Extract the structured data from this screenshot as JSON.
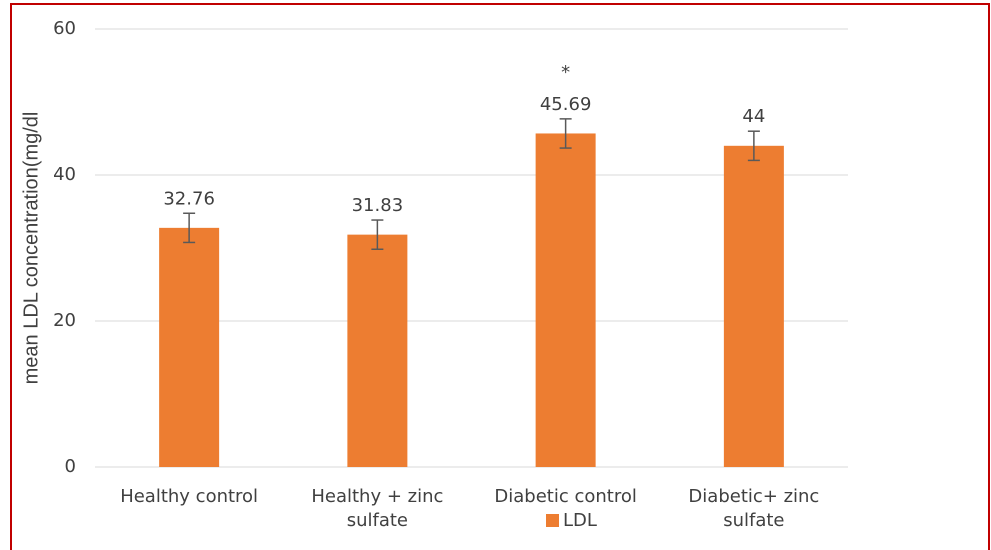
{
  "chart_data": {
    "type": "bar",
    "y_label": "mean LDL concentration(mg/dl",
    "categories": [
      "Healthy control",
      "Healthy + zinc sulfate",
      "Diabetic control",
      "Diabetic+ zinc sulfate"
    ],
    "series": [
      {
        "name": "LDL",
        "color": "#ed7d31",
        "values": [
          32.76,
          31.83,
          45.69,
          44
        ],
        "errors": [
          2,
          2,
          2,
          2
        ]
      }
    ],
    "annotations": [
      {
        "text": "*",
        "category": "Diabetic control"
      }
    ],
    "ylim": [
      0,
      60
    ],
    "yticks": [
      0,
      20,
      40,
      60
    ],
    "grid": true,
    "legend": "bottom"
  }
}
